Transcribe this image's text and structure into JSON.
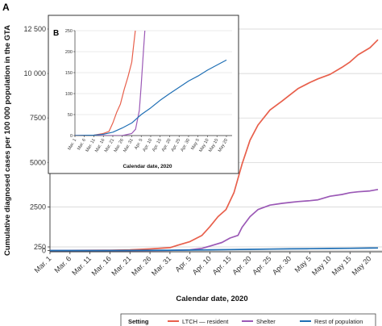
{
  "figure": {
    "panel_a_label": "A",
    "panel_b_label": "B"
  },
  "legend": {
    "title": "Setting",
    "entries": [
      {
        "label": "LTCH — resident",
        "color": "#e8604c"
      },
      {
        "label": "Shelter",
        "color": "#9b59b6"
      },
      {
        "label": "Rest of population",
        "color": "#1f6fb5"
      }
    ]
  },
  "chart_data": [
    {
      "panel": "A",
      "type": "line",
      "xlabel": "Calendar date, 2020",
      "ylabel": "Cumulative diagnosed cases per 100 000 population  in the GTA",
      "x_ticks": [
        "Mar. 1",
        "Mar. 6",
        "Mar. 11",
        "Mar. 16",
        "Mar. 21",
        "Mar. 26",
        "Mar. 31",
        "Apr. 5",
        "Apr. 10",
        "Apr. 15",
        "Apr. 20",
        "Apr. 25",
        "Apr. 30",
        "May 5",
        "May 10",
        "May 15",
        "May 20"
      ],
      "y_ticks": [
        0,
        250,
        2500,
        5000,
        7500,
        10000,
        12500
      ],
      "y_tick_labels": [
        "0",
        "250",
        "2500",
        "5000",
        "7500",
        "10 000",
        "12 500"
      ],
      "ylim": [
        0,
        12500
      ],
      "grid": "horizontal",
      "series": [
        {
          "name": "LTCH — resident",
          "color": "#e8604c",
          "x": [
            "Mar. 1",
            "Mar. 16",
            "Mar. 21",
            "Mar. 26",
            "Mar. 31",
            "Apr. 2",
            "Apr. 5",
            "Apr. 8",
            "Apr. 10",
            "Apr. 12",
            "Apr. 14",
            "Apr. 16",
            "Apr. 18",
            "Apr. 20",
            "Apr. 22",
            "Apr. 25",
            "Apr. 28",
            "Apr. 30",
            "May 2",
            "May 5",
            "May 7",
            "May 10",
            "May 13",
            "May 15",
            "May 17",
            "May 20",
            "May 22"
          ],
          "y": [
            0,
            20,
            50,
            110,
            200,
            350,
            550,
            900,
            1400,
            1950,
            2350,
            3300,
            4900,
            6250,
            7100,
            7950,
            8450,
            8800,
            9150,
            9500,
            9700,
            9950,
            10350,
            10650,
            11050,
            11450,
            11900
          ]
        },
        {
          "name": "Shelter",
          "color": "#9b59b6",
          "x": [
            "Mar. 1",
            "Mar. 21",
            "Mar. 31",
            "Apr. 5",
            "Apr. 8",
            "Apr. 10",
            "Apr. 13",
            "Apr. 15",
            "Apr. 17",
            "Apr. 18",
            "Apr. 20",
            "Apr. 22",
            "Apr. 25",
            "Apr. 28",
            "Apr. 30",
            "May 2",
            "May 5",
            "May 7",
            "May 10",
            "May 13",
            "May 15",
            "May 17",
            "May 20",
            "May 22"
          ],
          "y": [
            0,
            0,
            10,
            50,
            150,
            300,
            500,
            750,
            900,
            1350,
            1950,
            2350,
            2600,
            2700,
            2750,
            2800,
            2850,
            2900,
            3100,
            3200,
            3300,
            3350,
            3400,
            3480
          ]
        },
        {
          "name": "Rest of population",
          "color": "#1f6fb5",
          "x": [
            "Mar. 1",
            "Mar. 11",
            "Mar. 21",
            "Mar. 31",
            "Apr. 5",
            "Apr. 10",
            "Apr. 15",
            "Apr. 20",
            "Apr. 25",
            "Apr. 30",
            "May 5",
            "May 10",
            "May 15",
            "May 20",
            "May 22"
          ],
          "y": [
            0,
            1,
            5,
            20,
            32,
            48,
            66,
            84,
            100,
            115,
            128,
            142,
            156,
            170,
            178
          ]
        }
      ]
    },
    {
      "panel": "B",
      "type": "line",
      "xlabel": "Calendar date, 2020",
      "ylabel": "",
      "x_ticks": [
        "Mar. 1",
        "Mar. 6",
        "Mar. 11",
        "Mar. 16",
        "Mar. 21",
        "Mar. 26",
        "Mar. 31",
        "Apr. 5",
        "Apr. 10",
        "Apr. 15",
        "Apr. 20",
        "Apr. 25",
        "Apr. 30",
        "May 5",
        "May 10",
        "May 15",
        "May 20"
      ],
      "y_ticks": [
        0,
        50,
        100,
        150,
        200,
        250
      ],
      "ylim": [
        0,
        250
      ],
      "series": [
        {
          "name": "LTCH — resident",
          "color": "#e8604c",
          "x": [
            "Mar. 1",
            "Mar. 11",
            "Mar. 16",
            "Mar. 19",
            "Mar. 21",
            "Mar. 23",
            "Mar. 25",
            "Mar. 27",
            "Mar. 29",
            "Mar. 31",
            "Apr. 1",
            "Apr. 2"
          ],
          "y": [
            0,
            1,
            5,
            10,
            30,
            55,
            75,
            110,
            140,
            175,
            215,
            255
          ]
        },
        {
          "name": "Shelter",
          "color": "#9b59b6",
          "x": [
            "Mar. 1",
            "Mar. 26",
            "Mar. 31",
            "Apr. 2",
            "Apr. 4",
            "Apr. 5",
            "Apr. 6",
            "Apr. 7"
          ],
          "y": [
            0,
            0,
            5,
            15,
            60,
            120,
            190,
            255
          ]
        },
        {
          "name": "Rest of population",
          "color": "#1f6fb5",
          "x": [
            "Mar. 1",
            "Mar. 11",
            "Mar. 16",
            "Mar. 21",
            "Mar. 26",
            "Mar. 31",
            "Apr. 5",
            "Apr. 10",
            "Apr. 15",
            "Apr. 20",
            "Apr. 25",
            "Apr. 30",
            "May 5",
            "May 10",
            "May 15",
            "May 20"
          ],
          "y": [
            0,
            1,
            3,
            8,
            18,
            30,
            50,
            66,
            84,
            100,
            115,
            130,
            142,
            156,
            168,
            180
          ]
        }
      ]
    }
  ]
}
